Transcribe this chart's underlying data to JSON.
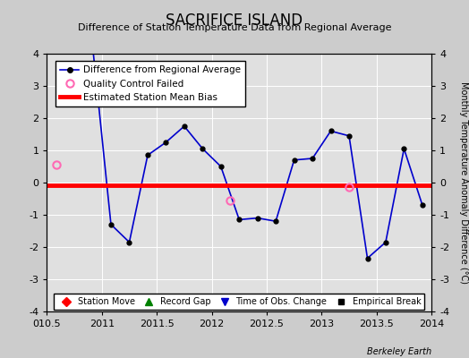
{
  "title": "SACRIFICE ISLAND",
  "subtitle": "Difference of Station Temperature Data from Regional Average",
  "ylabel_right": "Monthly Temperature Anomaly Difference (°C)",
  "credit": "Berkeley Earth",
  "xlim": [
    2010.5,
    2014.0
  ],
  "ylim": [
    -4,
    4
  ],
  "yticks": [
    -4,
    -3,
    -2,
    -1,
    0,
    1,
    2,
    3,
    4
  ],
  "bias_value": -0.07,
  "line_color": "#0000cc",
  "bias_color": "#ff0000",
  "qc_color": "#ff69b4",
  "bg_color": "#cccccc",
  "plot_bg": "#e0e0e0",
  "data_x": [
    2010.917,
    2011.083,
    2011.25,
    2011.417,
    2011.583,
    2011.75,
    2011.917,
    2012.083,
    2012.25,
    2012.417,
    2012.583,
    2012.75,
    2012.917,
    2013.083,
    2013.25,
    2013.417,
    2013.583,
    2013.75,
    2013.917
  ],
  "data_y": [
    4.2,
    -1.3,
    -1.85,
    0.85,
    1.25,
    1.75,
    1.05,
    0.5,
    -1.15,
    -1.1,
    -1.2,
    0.7,
    0.75,
    1.6,
    1.45,
    -2.35,
    -1.85,
    1.05,
    -0.7
  ],
  "qc_points_x": [
    2010.583,
    2012.167,
    2013.25
  ],
  "qc_points_y": [
    0.55,
    -0.55,
    -0.15
  ],
  "xtick_vals": [
    2010.5,
    2011,
    2011.5,
    2012,
    2012.5,
    2013,
    2013.5,
    2014
  ],
  "xticklabels": [
    "010.5",
    "2011",
    "2011.5",
    "2012",
    "2012.5",
    "2013",
    "2013.5",
    "2014"
  ]
}
